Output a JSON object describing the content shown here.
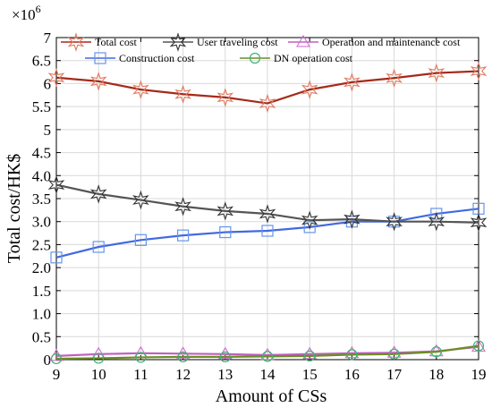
{
  "chart_data": {
    "type": "line",
    "title": "",
    "xlabel": "Amount of CSs",
    "ylabel": "Total cost/HK$",
    "y_exponent_label": "×10",
    "y_exponent_power": "6",
    "x": [
      9,
      10,
      11,
      12,
      13,
      14,
      15,
      16,
      17,
      18,
      19
    ],
    "xlim": [
      9,
      19
    ],
    "ylim": [
      0,
      7
    ],
    "x_ticks": [
      "9",
      "10",
      "11",
      "12",
      "13",
      "14",
      "15",
      "16",
      "17",
      "18",
      "19"
    ],
    "y_ticks": [
      "0",
      "0.5",
      "1.0",
      "1.5",
      "2.0",
      "2.5",
      "3.0",
      "3.5",
      "4.0",
      "4.5",
      "5",
      "5.5",
      "6",
      "6.5",
      "7"
    ],
    "y_tick_values": [
      0,
      0.5,
      1.0,
      1.5,
      2.0,
      2.5,
      3.0,
      3.5,
      4.0,
      4.5,
      5,
      5.5,
      6,
      6.5,
      7
    ],
    "grid": true,
    "legend_position": "top",
    "series": [
      {
        "name": "Total cost",
        "color": "#a52a1a",
        "marker": "star6",
        "marker_color": "#e07a5f",
        "values": [
          6.13,
          6.05,
          5.87,
          5.77,
          5.7,
          5.57,
          5.87,
          6.03,
          6.12,
          6.23,
          6.27
        ]
      },
      {
        "name": "User traveling cost",
        "color": "#555555",
        "marker": "star6",
        "marker_color": "#333333",
        "values": [
          3.8,
          3.6,
          3.47,
          3.33,
          3.23,
          3.17,
          3.03,
          3.05,
          3.0,
          3.0,
          2.98
        ]
      },
      {
        "name": "Operation and maintenance cost",
        "color": "#c060c0",
        "marker": "triangle",
        "marker_color": "#d070d0",
        "values": [
          0.08,
          0.12,
          0.14,
          0.13,
          0.12,
          0.1,
          0.12,
          0.14,
          0.15,
          0.18,
          0.28
        ]
      },
      {
        "name": "Construction cost",
        "color": "#4169e1",
        "marker": "square",
        "marker_color": "#6495ed",
        "values": [
          2.22,
          2.45,
          2.6,
          2.7,
          2.77,
          2.8,
          2.88,
          3.0,
          3.0,
          3.17,
          3.28
        ]
      },
      {
        "name": "DN operation cost",
        "color": "#6b8e23",
        "marker": "circle",
        "marker_color": "#3cb371",
        "values": [
          0.02,
          0.03,
          0.05,
          0.06,
          0.06,
          0.07,
          0.08,
          0.11,
          0.12,
          0.17,
          0.3
        ]
      }
    ]
  }
}
